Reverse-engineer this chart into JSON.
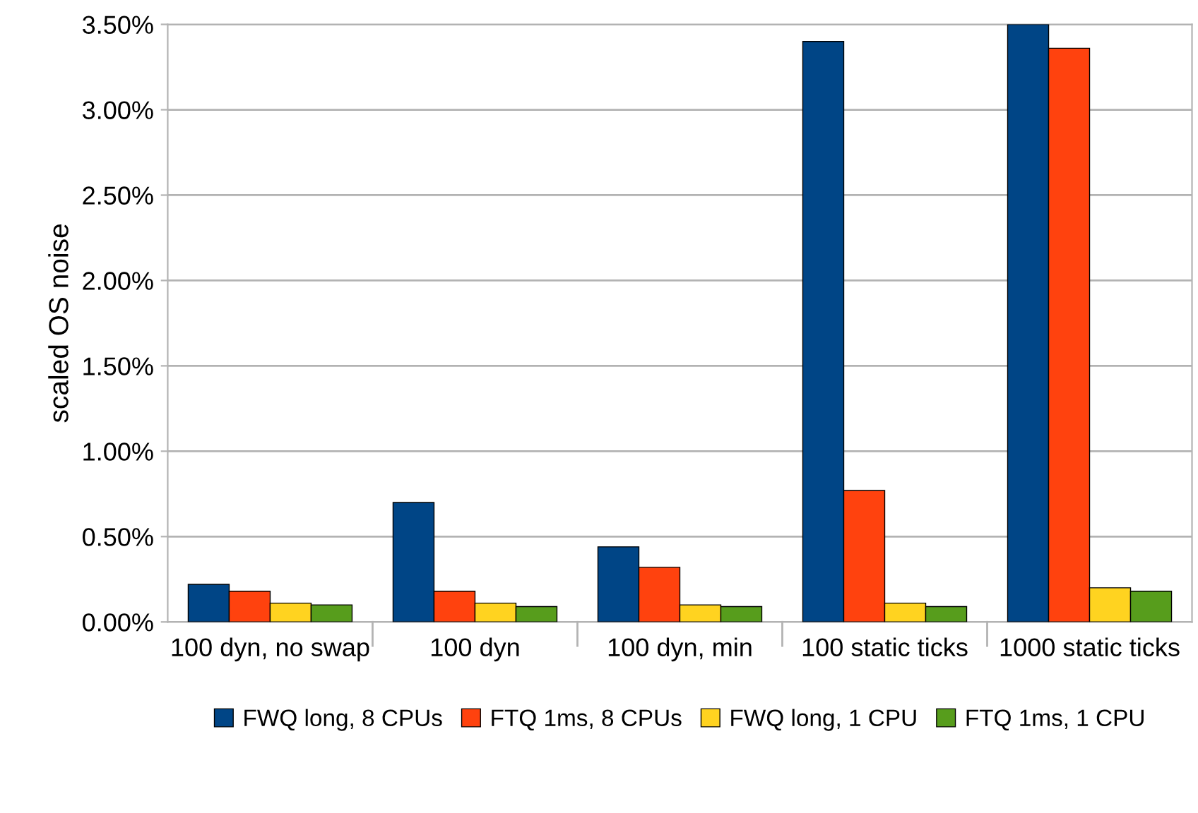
{
  "chart_data": {
    "type": "bar",
    "ylabel": "scaled OS noise",
    "categories": [
      "100 dyn, no swap",
      "100 dyn",
      "100 dyn, min",
      "100 static ticks",
      "1000 static ticks"
    ],
    "series": [
      {
        "name": "FWQ long, 8 CPUs",
        "color": "#004586",
        "values": [
          0.22,
          0.7,
          0.44,
          3.4,
          3.5
        ]
      },
      {
        "name": "FTQ 1ms, 8 CPUs",
        "color": "#ff420e",
        "values": [
          0.18,
          0.18,
          0.32,
          0.77,
          3.36
        ]
      },
      {
        "name": "FWQ long, 1 CPU",
        "color": "#ffd320",
        "values": [
          0.11,
          0.11,
          0.1,
          0.11,
          0.2
        ]
      },
      {
        "name": "FTQ 1ms, 1 CPU",
        "color": "#579d1c",
        "values": [
          0.1,
          0.09,
          0.09,
          0.09,
          0.18
        ]
      }
    ],
    "ylim": [
      0,
      3.5
    ],
    "yticks": [
      {
        "value": 0,
        "label": "0.00%"
      },
      {
        "value": 0.5,
        "label": "0.50%"
      },
      {
        "value": 1.0,
        "label": "1.00%"
      },
      {
        "value": 1.5,
        "label": "1.50%"
      },
      {
        "value": 2.0,
        "label": "2.00%"
      },
      {
        "value": 2.5,
        "label": "2.50%"
      },
      {
        "value": 3.0,
        "label": "3.00%"
      },
      {
        "value": 3.5,
        "label": "3.50%"
      }
    ],
    "grid": "y",
    "legend": "bottom"
  }
}
